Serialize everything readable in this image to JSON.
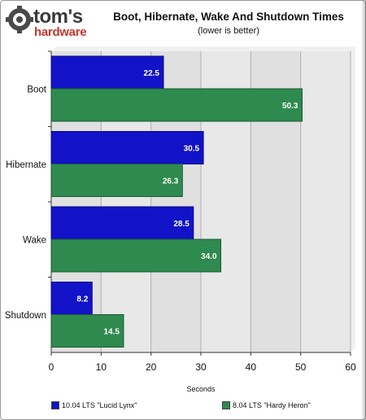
{
  "header": {
    "logo_word": "tom's",
    "logo_sub": "hardware",
    "title": "Boot, Hibernate, Wake And Shutdown Times",
    "subtitle": "(lower is better)"
  },
  "colors": {
    "series1": "#1212c8",
    "series2": "#2e8a4e",
    "plot_bg": "#e6e6e6",
    "grid": "#b0b0b0"
  },
  "chart_data": {
    "type": "bar",
    "orientation": "horizontal",
    "categories": [
      "Boot",
      "Hibernate",
      "Wake",
      "Shutdown"
    ],
    "series": [
      {
        "name": "10.04 LTS \"Lucid Lynx\"",
        "values": [
          22.5,
          30.5,
          28.5,
          8.2
        ]
      },
      {
        "name": "8.04 LTS \"Hardy Heron\"",
        "values": [
          50.3,
          26.3,
          34.0,
          14.5
        ]
      }
    ],
    "value_labels": [
      [
        "22.5",
        "30.5",
        "28.5",
        "8.2"
      ],
      [
        "50.3",
        "26.3",
        "34.0",
        "14.5"
      ]
    ],
    "xticks": [
      "0",
      "10",
      "20",
      "30",
      "40",
      "50",
      "60"
    ],
    "xlabel": "Seconds",
    "ylabel": "",
    "xlim": [
      0,
      60
    ],
    "grid": true,
    "legend": "bottom"
  }
}
